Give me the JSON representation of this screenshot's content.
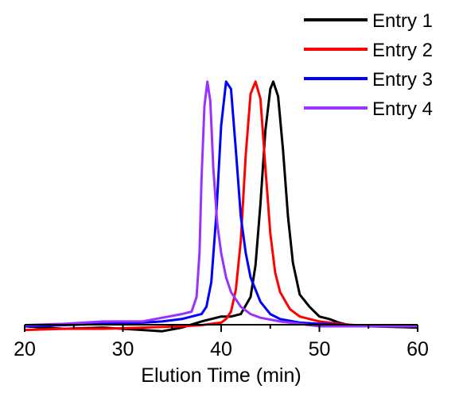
{
  "chart_data": {
    "type": "line",
    "title": "",
    "xlabel": "Elution Time (min)",
    "ylabel": "",
    "xlim": [
      20,
      60
    ],
    "xticks": [
      20,
      30,
      40,
      50,
      60
    ],
    "ylim": [
      -0.12,
      1.1
    ],
    "grid": false,
    "legend": "top-right",
    "series": [
      {
        "name": "Entry 1",
        "color": "#000000",
        "x": [
          20,
          24,
          28,
          32,
          34,
          36,
          38,
          39,
          40,
          41,
          42,
          43,
          43.5,
          44,
          44.5,
          45,
          45.3,
          45.8,
          46.3,
          46.8,
          47.3,
          48,
          49,
          50,
          51,
          52,
          53,
          55,
          60
        ],
        "y": [
          0.0,
          -0.01,
          -0.005,
          -0.015,
          -0.02,
          -0.005,
          0.02,
          0.03,
          0.04,
          0.04,
          0.05,
          0.12,
          0.25,
          0.5,
          0.8,
          0.97,
          1.0,
          0.94,
          0.72,
          0.45,
          0.26,
          0.13,
          0.08,
          0.04,
          0.03,
          0.015,
          0.005,
          0.0,
          -0.005
        ]
      },
      {
        "name": "Entry 2",
        "color": "#ff0000",
        "x": [
          20,
          24,
          28,
          32,
          36,
          38,
          39,
          40,
          40.5,
          41,
          41.5,
          42,
          42.5,
          43,
          43.5,
          44,
          44.5,
          45,
          45.5,
          46,
          47,
          48,
          50,
          52,
          55,
          60
        ],
        "y": [
          -0.015,
          -0.01,
          -0.01,
          -0.005,
          0.0,
          0.005,
          0.01,
          0.015,
          0.03,
          0.06,
          0.15,
          0.35,
          0.7,
          0.95,
          1.0,
          0.93,
          0.65,
          0.38,
          0.22,
          0.14,
          0.07,
          0.04,
          0.02,
          0.01,
          0.0,
          0.0
        ]
      },
      {
        "name": "Entry 3",
        "color": "#0000ff",
        "x": [
          20,
          24,
          28,
          32,
          34,
          36,
          37,
          38,
          38.5,
          39,
          39.5,
          40,
          40.5,
          41,
          41.5,
          42,
          42.5,
          43,
          44,
          45,
          46,
          48,
          50,
          53,
          56,
          60
        ],
        "y": [
          0.0,
          0.005,
          0.01,
          0.015,
          0.02,
          0.03,
          0.04,
          0.05,
          0.08,
          0.18,
          0.45,
          0.82,
          1.0,
          0.97,
          0.72,
          0.45,
          0.3,
          0.2,
          0.1,
          0.05,
          0.03,
          0.015,
          0.01,
          0.005,
          0.0,
          0.0
        ]
      },
      {
        "name": "Entry 4",
        "color": "#9932ff",
        "x": [
          20,
          24,
          28,
          30,
          32,
          34,
          36,
          37,
          37.5,
          37.8,
          38,
          38.3,
          38.6,
          38.9,
          39.2,
          39.6,
          40,
          40.5,
          41,
          42,
          43,
          44,
          46,
          48,
          50,
          55,
          60
        ],
        "y": [
          0.005,
          0.01,
          0.02,
          0.02,
          0.02,
          0.035,
          0.05,
          0.06,
          0.12,
          0.3,
          0.6,
          0.9,
          1.0,
          0.92,
          0.65,
          0.42,
          0.3,
          0.2,
          0.14,
          0.08,
          0.05,
          0.035,
          0.02,
          0.01,
          0.0,
          0.0,
          0.0
        ]
      }
    ]
  }
}
